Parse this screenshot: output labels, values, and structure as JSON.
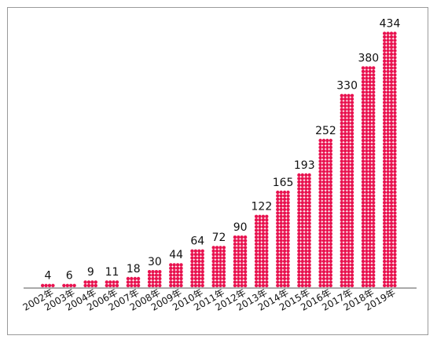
{
  "chart_data": {
    "type": "bar",
    "style": "dot-column",
    "categories": [
      "2002年",
      "2003年",
      "2004年",
      "2006年",
      "2007年",
      "2008年",
      "2009年",
      "2010年",
      "2011年",
      "2012年",
      "2013年",
      "2014年",
      "2015年",
      "2016年",
      "2017年",
      "2018年",
      "2019年"
    ],
    "values": [
      4,
      6,
      9,
      11,
      18,
      30,
      44,
      64,
      72,
      90,
      122,
      165,
      193,
      252,
      330,
      380,
      434
    ],
    "title": "",
    "xlabel": "",
    "ylabel": "",
    "ylim": [
      0,
      434
    ],
    "grid": false,
    "legend": "none",
    "colors": {
      "dot": "#e8124f",
      "axis": "#555555",
      "border": "#9a9a9a"
    }
  }
}
